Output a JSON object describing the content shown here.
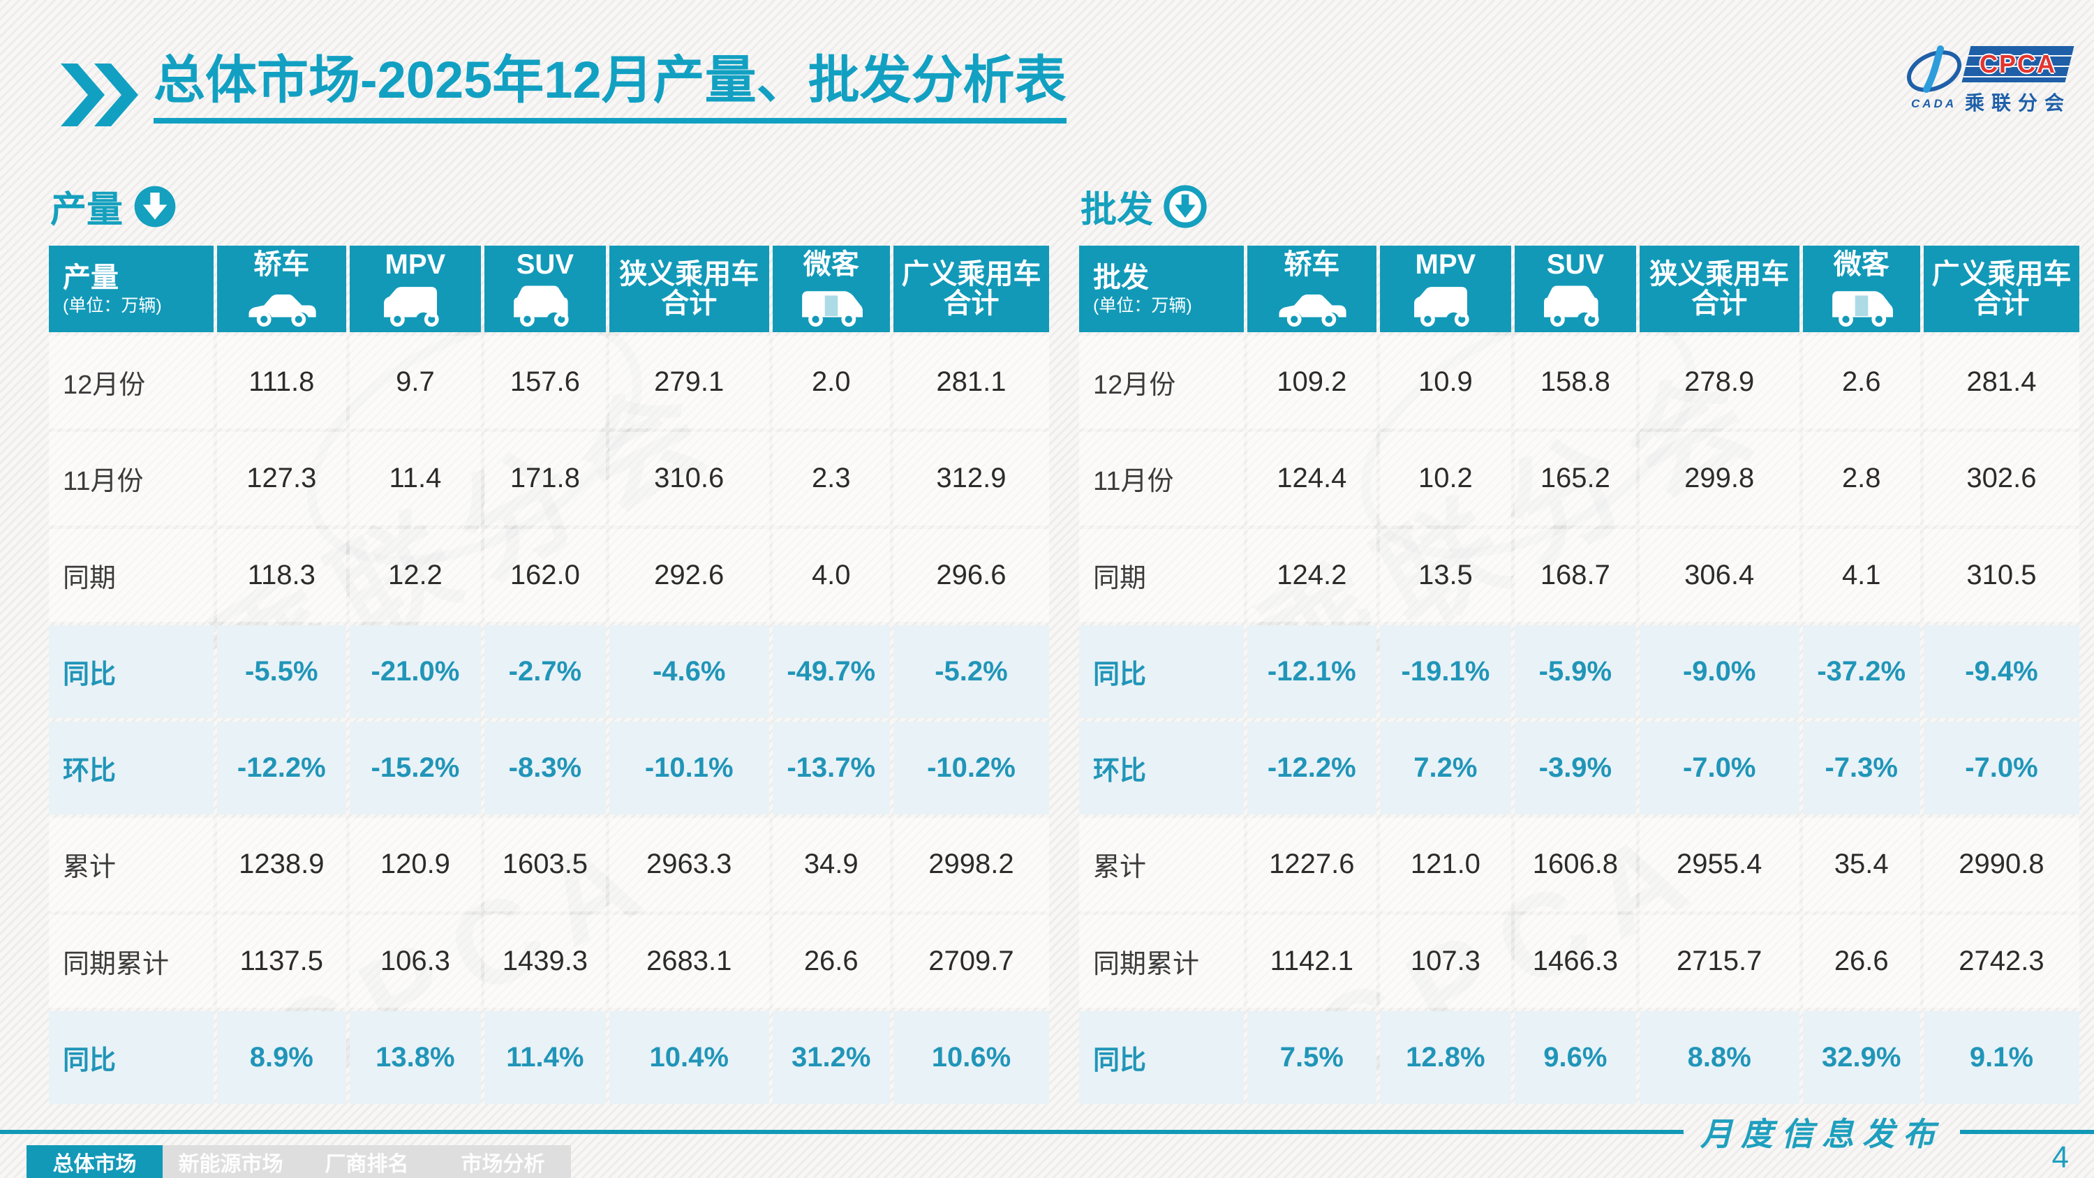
{
  "colors": {
    "accent": "#14A0BE",
    "table_header_bg": "#1299B8",
    "highlight_row_bg": "#E9F2F7",
    "highlight_text": "#2095B8",
    "logo_blue": "#1E5FA8",
    "logo_red": "#E3342F"
  },
  "title": {
    "prefix": "总体市场",
    "rest": "-2025年12月产量、批发分析表"
  },
  "logo": {
    "cpca": "CPCA",
    "subtitle": "乘联分会",
    "cada": "CADA"
  },
  "icons": {
    "title_chevron": "double-chevron-right-icon",
    "production_arrow": "circle-arrow-down-solid-icon",
    "wholesale_arrow": "circle-arrow-down-outline-icon",
    "column_icons": [
      "sedan-car-icon",
      "mpv-car-icon",
      "suv-car-icon",
      "microvan-icon"
    ]
  },
  "tables": [
    {
      "section_title": "产量",
      "unit": "(单位：万辆)",
      "columns": [
        {
          "label": "轿车",
          "icon": "sedan-car-icon"
        },
        {
          "label": "MPV",
          "icon": "mpv-car-icon"
        },
        {
          "label": "SUV",
          "icon": "suv-car-icon"
        },
        {
          "label": "狭义乘用车",
          "line2": "合计"
        },
        {
          "label": "微客",
          "icon": "microvan-icon"
        },
        {
          "label": "广义乘用车",
          "line2": "合计"
        }
      ],
      "rows": [
        {
          "label": "12月份",
          "type": "normal",
          "values": [
            "111.8",
            "9.7",
            "157.6",
            "279.1",
            "2.0",
            "281.1"
          ]
        },
        {
          "label": "11月份",
          "type": "normal",
          "values": [
            "127.3",
            "11.4",
            "171.8",
            "310.6",
            "2.3",
            "312.9"
          ]
        },
        {
          "label": "同期",
          "type": "normal",
          "values": [
            "118.3",
            "12.2",
            "162.0",
            "292.6",
            "4.0",
            "296.6"
          ]
        },
        {
          "label": "同比",
          "type": "highlight",
          "values": [
            "-5.5%",
            "-21.0%",
            "-2.7%",
            "-4.6%",
            "-49.7%",
            "-5.2%"
          ]
        },
        {
          "label": "环比",
          "type": "highlight",
          "values": [
            "-12.2%",
            "-15.2%",
            "-8.3%",
            "-10.1%",
            "-13.7%",
            "-10.2%"
          ]
        },
        {
          "label": "累计",
          "type": "normal",
          "values": [
            "1238.9",
            "120.9",
            "1603.5",
            "2963.3",
            "34.9",
            "2998.2"
          ]
        },
        {
          "label": "同期累计",
          "type": "normal",
          "values": [
            "1137.5",
            "106.3",
            "1439.3",
            "2683.1",
            "26.6",
            "2709.7"
          ]
        },
        {
          "label": "同比",
          "type": "highlight",
          "values": [
            "8.9%",
            "13.8%",
            "11.4%",
            "10.4%",
            "31.2%",
            "10.6%"
          ]
        }
      ]
    },
    {
      "section_title": "批发",
      "unit": "(单位：万辆)",
      "columns": [
        {
          "label": "轿车",
          "icon": "sedan-car-icon"
        },
        {
          "label": "MPV",
          "icon": "mpv-car-icon"
        },
        {
          "label": "SUV",
          "icon": "suv-car-icon"
        },
        {
          "label": "狭义乘用车",
          "line2": "合计"
        },
        {
          "label": "微客",
          "icon": "microvan-icon"
        },
        {
          "label": "广义乘用车",
          "line2": "合计"
        }
      ],
      "rows": [
        {
          "label": "12月份",
          "type": "normal",
          "values": [
            "109.2",
            "10.9",
            "158.8",
            "278.9",
            "2.6",
            "281.4"
          ]
        },
        {
          "label": "11月份",
          "type": "normal",
          "values": [
            "124.4",
            "10.2",
            "165.2",
            "299.8",
            "2.8",
            "302.6"
          ]
        },
        {
          "label": "同期",
          "type": "normal",
          "values": [
            "124.2",
            "13.5",
            "168.7",
            "306.4",
            "4.1",
            "310.5"
          ]
        },
        {
          "label": "同比",
          "type": "highlight",
          "values": [
            "-12.1%",
            "-19.1%",
            "-5.9%",
            "-9.0%",
            "-37.2%",
            "-9.4%"
          ]
        },
        {
          "label": "环比",
          "type": "highlight",
          "values": [
            "-12.2%",
            "7.2%",
            "-3.9%",
            "-7.0%",
            "-7.3%",
            "-7.0%"
          ]
        },
        {
          "label": "累计",
          "type": "normal",
          "values": [
            "1227.6",
            "121.0",
            "1606.8",
            "2955.4",
            "35.4",
            "2990.8"
          ]
        },
        {
          "label": "同期累计",
          "type": "normal",
          "values": [
            "1142.1",
            "107.3",
            "1466.3",
            "2715.7",
            "26.6",
            "2742.3"
          ]
        },
        {
          "label": "同比",
          "type": "highlight",
          "values": [
            "7.5%",
            "12.8%",
            "9.6%",
            "8.8%",
            "32.9%",
            "9.1%"
          ]
        }
      ]
    }
  ],
  "footer": {
    "tabs": [
      {
        "label": "总体市场",
        "active": true
      },
      {
        "label": "新能源市场",
        "active": false
      },
      {
        "label": "厂商排名",
        "active": false
      },
      {
        "label": "市场分析",
        "active": false
      }
    ],
    "publication": "月度信息发布",
    "page": "4"
  }
}
